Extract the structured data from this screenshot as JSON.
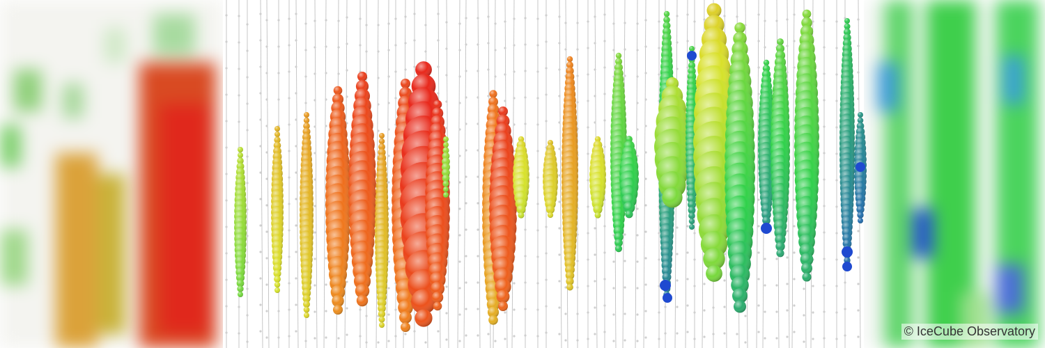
{
  "image": {
    "credit": "© IceCube Observatory",
    "colors": {
      "early": "#e8281b",
      "mid_early": "#f07a1c",
      "middle": "#d9e22a",
      "mid_late": "#2ed14a",
      "late": "#1f4ad0",
      "string_line": "#b9b9b9",
      "background": "#ffffff"
    }
  }
}
